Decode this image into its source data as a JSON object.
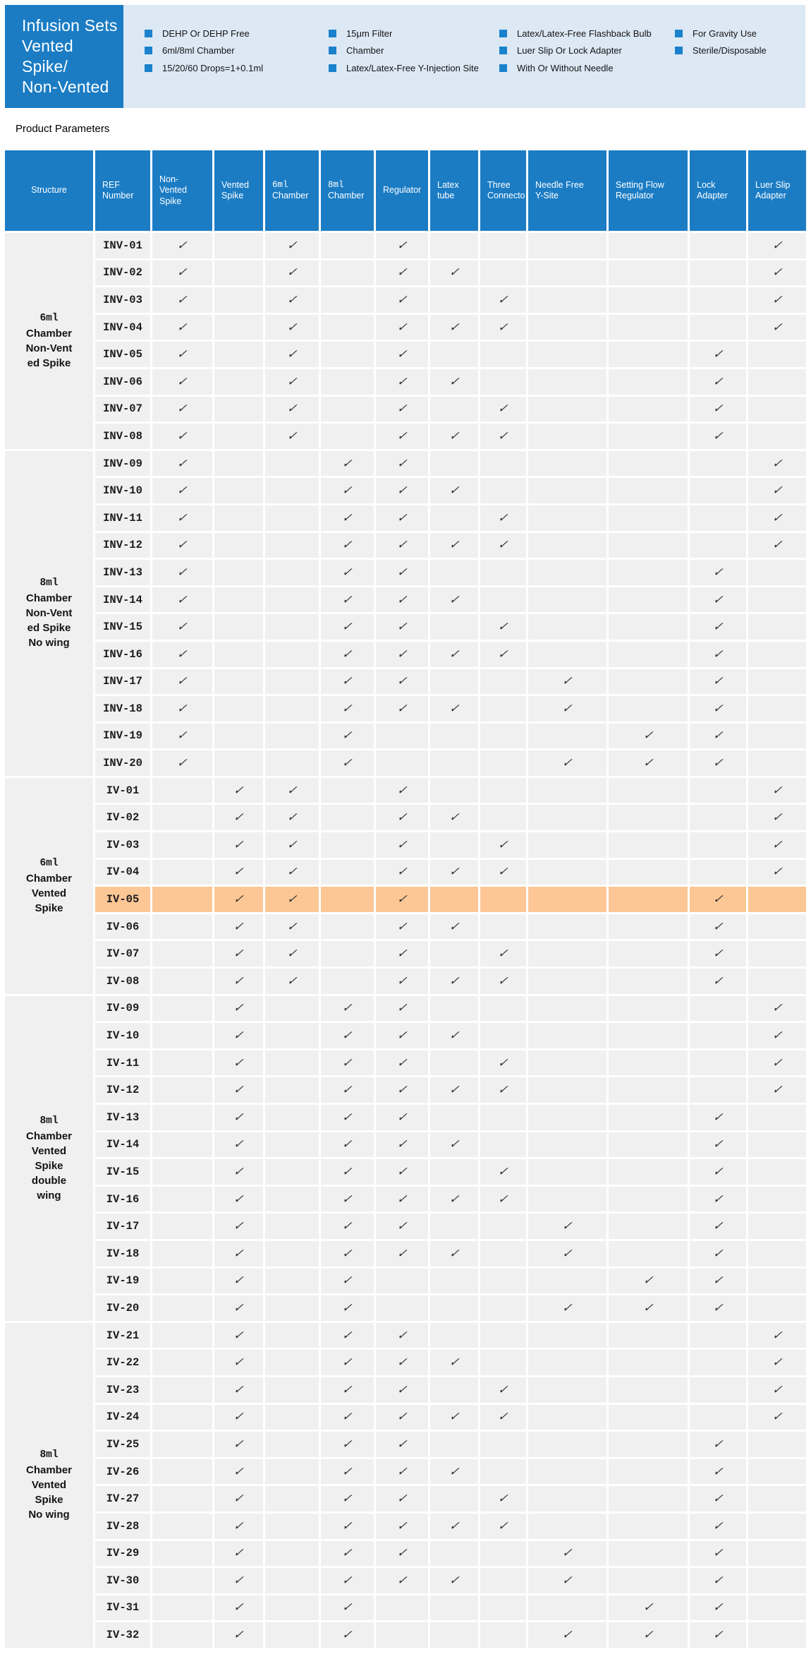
{
  "banner": {
    "title_lines": [
      "Infusion Sets",
      " Vented Spike/",
      "Non-Vented"
    ],
    "feature_columns": [
      [
        "DEHP Or DEHP Free",
        "6ml/8ml Chamber",
        "15/20/60 Drops=1+0.1ml"
      ],
      [
        "15μm Filter",
        "Chamber",
        "Latex/Latex-Free Y-Injection Site"
      ],
      [
        "Latex/Latex-Free Flashback Bulb",
        "Luer Slip Or Lock Adapter",
        "With Or Without Needle"
      ],
      [
        "For Gravity Use",
        "Sterile/Disposable"
      ]
    ]
  },
  "section_title": "Product Parameters",
  "colors": {
    "accent_blue": "#1b7cc4",
    "panel_blue": "#dce8f4",
    "bullet_blue": "#1a81cc",
    "row_gray": "#f0f0f0",
    "highlight_orange": "#fcc795",
    "check_color": "#333333"
  },
  "table": {
    "check_mark": "✓",
    "highlight_ref": "IV-05",
    "column_headers": [
      [
        "Structure"
      ],
      [
        "REF",
        "Number"
      ],
      [
        "Non-",
        "Vented",
        "Spike"
      ],
      [
        "Vented",
        "Spike"
      ],
      [
        "6ml",
        "Chamber"
      ],
      [
        "8ml",
        "Chamber"
      ],
      [
        "Regulator"
      ],
      [
        "Latex",
        "tube"
      ],
      [
        "Three",
        "Connecto"
      ],
      [
        "Needle Free",
        "Y-Site"
      ],
      [
        "Setting Flow",
        "Regulator"
      ],
      [
        "Lock",
        "Adapter"
      ],
      [
        "Luer  Slip",
        "Adapter"
      ]
    ],
    "check_column_keys": [
      "non_vented_spike",
      "vented_spike",
      "chamber_6ml",
      "chamber_8ml",
      "regulator",
      "latex_tube",
      "three_connecto",
      "needle_free_y_site",
      "setting_flow_regulator",
      "lock_adapter",
      "luer_slip_adapter"
    ],
    "groups": [
      {
        "structure_lines": [
          "6ml",
          "Chamber",
          "Non-Vent",
          "ed Spike"
        ],
        "rows": [
          {
            "ref": "INV-01",
            "checks": [
              1,
              0,
              1,
              0,
              1,
              0,
              0,
              0,
              0,
              0,
              1
            ]
          },
          {
            "ref": "INV-02",
            "checks": [
              1,
              0,
              1,
              0,
              1,
              1,
              0,
              0,
              0,
              0,
              1
            ]
          },
          {
            "ref": "INV-03",
            "checks": [
              1,
              0,
              1,
              0,
              1,
              0,
              1,
              0,
              0,
              0,
              1
            ]
          },
          {
            "ref": "INV-04",
            "checks": [
              1,
              0,
              1,
              0,
              1,
              1,
              1,
              0,
              0,
              0,
              1
            ]
          },
          {
            "ref": "INV-05",
            "checks": [
              1,
              0,
              1,
              0,
              1,
              0,
              0,
              0,
              0,
              1,
              0
            ]
          },
          {
            "ref": "INV-06",
            "checks": [
              1,
              0,
              1,
              0,
              1,
              1,
              0,
              0,
              0,
              1,
              0
            ]
          },
          {
            "ref": "INV-07",
            "checks": [
              1,
              0,
              1,
              0,
              1,
              0,
              1,
              0,
              0,
              1,
              0
            ]
          },
          {
            "ref": "INV-08",
            "checks": [
              1,
              0,
              1,
              0,
              1,
              1,
              1,
              0,
              0,
              1,
              0
            ]
          }
        ]
      },
      {
        "structure_lines": [
          "8ml",
          "Chamber",
          "Non-Vent",
          "ed Spike",
          "No wing"
        ],
        "rows": [
          {
            "ref": "INV-09",
            "checks": [
              1,
              0,
              0,
              1,
              1,
              0,
              0,
              0,
              0,
              0,
              1
            ]
          },
          {
            "ref": "INV-10",
            "checks": [
              1,
              0,
              0,
              1,
              1,
              1,
              0,
              0,
              0,
              0,
              1
            ]
          },
          {
            "ref": "INV-11",
            "checks": [
              1,
              0,
              0,
              1,
              1,
              0,
              1,
              0,
              0,
              0,
              1
            ]
          },
          {
            "ref": "INV-12",
            "checks": [
              1,
              0,
              0,
              1,
              1,
              1,
              1,
              0,
              0,
              0,
              1
            ]
          },
          {
            "ref": "INV-13",
            "checks": [
              1,
              0,
              0,
              1,
              1,
              0,
              0,
              0,
              0,
              1,
              0
            ]
          },
          {
            "ref": "INV-14",
            "checks": [
              1,
              0,
              0,
              1,
              1,
              1,
              0,
              0,
              0,
              1,
              0
            ]
          },
          {
            "ref": "INV-15",
            "checks": [
              1,
              0,
              0,
              1,
              1,
              0,
              1,
              0,
              0,
              1,
              0
            ]
          },
          {
            "ref": "INV-16",
            "checks": [
              1,
              0,
              0,
              1,
              1,
              1,
              1,
              0,
              0,
              1,
              0
            ]
          },
          {
            "ref": "INV-17",
            "checks": [
              1,
              0,
              0,
              1,
              1,
              0,
              0,
              1,
              0,
              1,
              0
            ]
          },
          {
            "ref": "INV-18",
            "checks": [
              1,
              0,
              0,
              1,
              1,
              1,
              0,
              1,
              0,
              1,
              0
            ]
          },
          {
            "ref": "INV-19",
            "checks": [
              1,
              0,
              0,
              1,
              0,
              0,
              0,
              0,
              1,
              1,
              0
            ]
          },
          {
            "ref": "INV-20",
            "checks": [
              1,
              0,
              0,
              1,
              0,
              0,
              0,
              1,
              1,
              1,
              0
            ]
          }
        ]
      },
      {
        "structure_lines": [
          "6ml",
          "Chamber",
          "Vented",
          "Spike"
        ],
        "rows": [
          {
            "ref": "IV-01",
            "checks": [
              0,
              1,
              1,
              0,
              1,
              0,
              0,
              0,
              0,
              0,
              1
            ]
          },
          {
            "ref": "IV-02",
            "checks": [
              0,
              1,
              1,
              0,
              1,
              1,
              0,
              0,
              0,
              0,
              1
            ]
          },
          {
            "ref": "IV-03",
            "checks": [
              0,
              1,
              1,
              0,
              1,
              0,
              1,
              0,
              0,
              0,
              1
            ]
          },
          {
            "ref": "IV-04",
            "checks": [
              0,
              1,
              1,
              0,
              1,
              1,
              1,
              0,
              0,
              0,
              1
            ]
          },
          {
            "ref": "IV-05",
            "checks": [
              0,
              1,
              1,
              0,
              1,
              0,
              0,
              0,
              0,
              1,
              0
            ]
          },
          {
            "ref": "IV-06",
            "checks": [
              0,
              1,
              1,
              0,
              1,
              1,
              0,
              0,
              0,
              1,
              0
            ]
          },
          {
            "ref": "IV-07",
            "checks": [
              0,
              1,
              1,
              0,
              1,
              0,
              1,
              0,
              0,
              1,
              0
            ]
          },
          {
            "ref": "IV-08",
            "checks": [
              0,
              1,
              1,
              0,
              1,
              1,
              1,
              0,
              0,
              1,
              0
            ]
          }
        ]
      },
      {
        "structure_lines": [
          "8ml",
          "Chamber",
          "Vented",
          "Spike",
          "double",
          "wing"
        ],
        "rows": [
          {
            "ref": "IV-09",
            "checks": [
              0,
              1,
              0,
              1,
              1,
              0,
              0,
              0,
              0,
              0,
              1
            ]
          },
          {
            "ref": "IV-10",
            "checks": [
              0,
              1,
              0,
              1,
              1,
              1,
              0,
              0,
              0,
              0,
              1
            ]
          },
          {
            "ref": "IV-11",
            "checks": [
              0,
              1,
              0,
              1,
              1,
              0,
              1,
              0,
              0,
              0,
              1
            ]
          },
          {
            "ref": "IV-12",
            "checks": [
              0,
              1,
              0,
              1,
              1,
              1,
              1,
              0,
              0,
              0,
              1
            ]
          },
          {
            "ref": "IV-13",
            "checks": [
              0,
              1,
              0,
              1,
              1,
              0,
              0,
              0,
              0,
              1,
              0
            ]
          },
          {
            "ref": "IV-14",
            "checks": [
              0,
              1,
              0,
              1,
              1,
              1,
              0,
              0,
              0,
              1,
              0
            ]
          },
          {
            "ref": "IV-15",
            "checks": [
              0,
              1,
              0,
              1,
              1,
              0,
              1,
              0,
              0,
              1,
              0
            ]
          },
          {
            "ref": "IV-16",
            "checks": [
              0,
              1,
              0,
              1,
              1,
              1,
              1,
              0,
              0,
              1,
              0
            ]
          },
          {
            "ref": "IV-17",
            "checks": [
              0,
              1,
              0,
              1,
              1,
              0,
              0,
              1,
              0,
              1,
              0
            ]
          },
          {
            "ref": "IV-18",
            "checks": [
              0,
              1,
              0,
              1,
              1,
              1,
              0,
              1,
              0,
              1,
              0
            ]
          },
          {
            "ref": "IV-19",
            "checks": [
              0,
              1,
              0,
              1,
              0,
              0,
              0,
              0,
              1,
              1,
              0
            ]
          },
          {
            "ref": "IV-20",
            "checks": [
              0,
              1,
              0,
              1,
              0,
              0,
              0,
              1,
              1,
              1,
              0
            ]
          }
        ]
      },
      {
        "structure_lines": [
          "8ml",
          "Chamber",
          "Vented",
          "Spike",
          "No wing"
        ],
        "rows": [
          {
            "ref": "IV-21",
            "checks": [
              0,
              1,
              0,
              1,
              1,
              0,
              0,
              0,
              0,
              0,
              1
            ]
          },
          {
            "ref": "IV-22",
            "checks": [
              0,
              1,
              0,
              1,
              1,
              1,
              0,
              0,
              0,
              0,
              1
            ]
          },
          {
            "ref": "IV-23",
            "checks": [
              0,
              1,
              0,
              1,
              1,
              0,
              1,
              0,
              0,
              0,
              1
            ]
          },
          {
            "ref": "IV-24",
            "checks": [
              0,
              1,
              0,
              1,
              1,
              1,
              1,
              0,
              0,
              0,
              1
            ]
          },
          {
            "ref": "IV-25",
            "checks": [
              0,
              1,
              0,
              1,
              1,
              0,
              0,
              0,
              0,
              1,
              0
            ]
          },
          {
            "ref": "IV-26",
            "checks": [
              0,
              1,
              0,
              1,
              1,
              1,
              0,
              0,
              0,
              1,
              0
            ]
          },
          {
            "ref": "IV-27",
            "checks": [
              0,
              1,
              0,
              1,
              1,
              0,
              1,
              0,
              0,
              1,
              0
            ]
          },
          {
            "ref": "IV-28",
            "checks": [
              0,
              1,
              0,
              1,
              1,
              1,
              1,
              0,
              0,
              1,
              0
            ]
          },
          {
            "ref": "IV-29",
            "checks": [
              0,
              1,
              0,
              1,
              1,
              0,
              0,
              1,
              0,
              1,
              0
            ]
          },
          {
            "ref": "IV-30",
            "checks": [
              0,
              1,
              0,
              1,
              1,
              1,
              0,
              1,
              0,
              1,
              0
            ]
          },
          {
            "ref": "IV-31",
            "checks": [
              0,
              1,
              0,
              1,
              0,
              0,
              0,
              0,
              1,
              1,
              0
            ]
          },
          {
            "ref": "IV-32",
            "checks": [
              0,
              1,
              0,
              1,
              0,
              0,
              0,
              1,
              1,
              1,
              0
            ]
          }
        ]
      }
    ]
  }
}
